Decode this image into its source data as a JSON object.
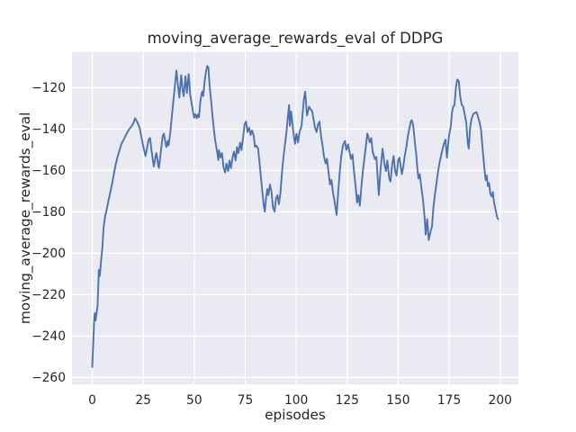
{
  "chart_data": {
    "type": "line",
    "title": "moving_average_rewards_eval of DDPG",
    "xlabel": "episodes",
    "ylabel": "moving_average_rewards_eval",
    "x_ticks": [
      0,
      25,
      50,
      75,
      100,
      125,
      150,
      175,
      200
    ],
    "y_ticks": [
      -120,
      -140,
      -160,
      -180,
      -200,
      -220,
      -240,
      -260
    ],
    "xlim": [
      -9.95,
      208.95
    ],
    "ylim": [
      -263.4,
      -102.7
    ],
    "grid": true,
    "legend": null,
    "colors": {
      "line": "#4c72b0",
      "plot_bg": "#eaeaf2",
      "grid": "#ffffff",
      "text": "#262626",
      "fig_bg": "#ffffff"
    },
    "series": [
      {
        "name": "moving_average_rewards_eval",
        "points": [
          [
            0,
            -255
          ],
          [
            1,
            -230.5
          ],
          [
            1.3,
            -229
          ],
          [
            1.6,
            -232.5
          ],
          [
            2.6,
            -225.5
          ],
          [
            3.2,
            -208
          ],
          [
            3.7,
            -211
          ],
          [
            4.3,
            -203.8
          ],
          [
            5,
            -196.5
          ],
          [
            5.5,
            -188
          ],
          [
            6.3,
            -182
          ],
          [
            6.7,
            -180.6
          ],
          [
            7.3,
            -177.7
          ],
          [
            8.2,
            -173.4
          ],
          [
            8.7,
            -171.2
          ],
          [
            9.9,
            -165.4
          ],
          [
            10.7,
            -161
          ],
          [
            11.4,
            -157.4
          ],
          [
            12.1,
            -154.5
          ],
          [
            12.9,
            -151.6
          ],
          [
            13.6,
            -149.4
          ],
          [
            14.3,
            -147.2
          ],
          [
            15.1,
            -145.7
          ],
          [
            15.8,
            -144.3
          ],
          [
            16.5,
            -142.9
          ],
          [
            17.3,
            -141.4
          ],
          [
            18.4,
            -139.7
          ],
          [
            19.5,
            -138.3
          ],
          [
            20.2,
            -137.1
          ],
          [
            21,
            -134.8
          ],
          [
            22,
            -136.5
          ],
          [
            23.2,
            -139.3
          ],
          [
            23.9,
            -142.9
          ],
          [
            24.6,
            -146.5
          ],
          [
            25.4,
            -150.1
          ],
          [
            26.1,
            -153
          ],
          [
            26.8,
            -149.4
          ],
          [
            27.6,
            -145.1
          ],
          [
            28.3,
            -144.3
          ],
          [
            29,
            -150.1
          ],
          [
            29.8,
            -155.9
          ],
          [
            30.2,
            -158.1
          ],
          [
            31,
            -153
          ],
          [
            31.5,
            -151.6
          ],
          [
            32.3,
            -157.4
          ],
          [
            32.7,
            -158.8
          ],
          [
            33.4,
            -153
          ],
          [
            34.5,
            -143.4
          ],
          [
            35.1,
            -142.2
          ],
          [
            36,
            -147.3
          ],
          [
            36.3,
            -148.7
          ],
          [
            37,
            -145.8
          ],
          [
            37.4,
            -148
          ],
          [
            38.2,
            -142.2
          ],
          [
            38.9,
            -135
          ],
          [
            39.5,
            -129.1
          ],
          [
            40.1,
            -123.3
          ],
          [
            40.7,
            -116.8
          ],
          [
            41.3,
            -111.7
          ],
          [
            42,
            -119
          ],
          [
            42.7,
            -124.8
          ],
          [
            43.6,
            -113.9
          ],
          [
            44.3,
            -121.2
          ],
          [
            44.8,
            -124.1
          ],
          [
            45.7,
            -114.5
          ],
          [
            46.4,
            -122.6
          ],
          [
            47.3,
            -113.5
          ],
          [
            48,
            -123.3
          ],
          [
            48.6,
            -127
          ],
          [
            49.3,
            -131.3
          ],
          [
            50,
            -134.5
          ],
          [
            50.5,
            -132.8
          ],
          [
            51.2,
            -134.8
          ],
          [
            51.8,
            -132.9
          ],
          [
            52.3,
            -134.3
          ],
          [
            52.9,
            -127.7
          ],
          [
            53.5,
            -123.3
          ],
          [
            53.9,
            -121.9
          ],
          [
            54.4,
            -124.1
          ],
          [
            55.1,
            -116.8
          ],
          [
            55.7,
            -112.4
          ],
          [
            56.4,
            -109.5
          ],
          [
            56.9,
            -110.3
          ],
          [
            57.5,
            -118.3
          ],
          [
            57.9,
            -122.6
          ],
          [
            58.4,
            -127.7
          ],
          [
            59,
            -134.2
          ],
          [
            59.6,
            -140
          ],
          [
            60.2,
            -145.1
          ],
          [
            60.7,
            -148
          ],
          [
            61.4,
            -152.3
          ],
          [
            61.8,
            -155
          ],
          [
            62.1,
            -150.2
          ],
          [
            62.9,
            -153.8
          ],
          [
            63.6,
            -151.6
          ],
          [
            64.3,
            -158.1
          ],
          [
            65.1,
            -161
          ],
          [
            65.8,
            -156.7
          ],
          [
            66.6,
            -160.3
          ],
          [
            67.3,
            -155.2
          ],
          [
            68,
            -158.9
          ],
          [
            68.8,
            -153.8
          ],
          [
            69.5,
            -150.9
          ],
          [
            70.3,
            -155.2
          ],
          [
            71,
            -148.7
          ],
          [
            71.7,
            -151.6
          ],
          [
            72.5,
            -146.5
          ],
          [
            73.2,
            -150.2
          ],
          [
            74.7,
            -137.8
          ],
          [
            75.4,
            -136.4
          ],
          [
            76.1,
            -141.5
          ],
          [
            76.9,
            -139.3
          ],
          [
            77.6,
            -142.9
          ],
          [
            78.3,
            -140.7
          ],
          [
            79.1,
            -142.9
          ],
          [
            79.8,
            -148.7
          ],
          [
            80.5,
            -148
          ],
          [
            81.3,
            -149.4
          ],
          [
            82,
            -156
          ],
          [
            82.7,
            -163.2
          ],
          [
            83.5,
            -171.2
          ],
          [
            84.2,
            -177.7
          ],
          [
            84.6,
            -179.9
          ],
          [
            85.2,
            -173.4
          ],
          [
            85.8,
            -169
          ],
          [
            86.4,
            -171.9
          ],
          [
            87.1,
            -166.8
          ],
          [
            87.9,
            -170.4
          ],
          [
            88.6,
            -177.7
          ],
          [
            89.4,
            -179.9
          ],
          [
            90.1,
            -173.4
          ],
          [
            90.8,
            -171.9
          ],
          [
            91.5,
            -176.3
          ],
          [
            92.3,
            -170.4
          ],
          [
            93,
            -161
          ],
          [
            93.8,
            -153
          ],
          [
            94.5,
            -147.2
          ],
          [
            95.2,
            -141.5
          ],
          [
            96,
            -133
          ],
          [
            96.5,
            -128.4
          ],
          [
            96.9,
            -138.5
          ],
          [
            97.5,
            -131.5
          ],
          [
            98.5,
            -140.7
          ],
          [
            99.4,
            -147.2
          ],
          [
            100.1,
            -142.3
          ],
          [
            100.9,
            -146.5
          ],
          [
            101.6,
            -141.5
          ],
          [
            102.6,
            -138.6
          ],
          [
            103.8,
            -125.5
          ],
          [
            104.4,
            -121.9
          ],
          [
            105.3,
            -133.5
          ],
          [
            106.3,
            -129.2
          ],
          [
            107,
            -130.3
          ],
          [
            107.8,
            -131.4
          ],
          [
            109.2,
            -139.3
          ],
          [
            110,
            -141.5
          ],
          [
            110.7,
            -137.8
          ],
          [
            111.4,
            -136.4
          ],
          [
            112.2,
            -143.7
          ],
          [
            112.9,
            -148
          ],
          [
            113.6,
            -153
          ],
          [
            114.4,
            -156.6
          ],
          [
            115.1,
            -154.4
          ],
          [
            115.8,
            -160.3
          ],
          [
            116.6,
            -166.8
          ],
          [
            117.3,
            -164.6
          ],
          [
            118,
            -170.4
          ],
          [
            118.8,
            -174.8
          ],
          [
            119.8,
            -181.5
          ],
          [
            120.7,
            -169
          ],
          [
            121.4,
            -160.3
          ],
          [
            122.1,
            -153
          ],
          [
            122.9,
            -148
          ],
          [
            123.9,
            -145.8
          ],
          [
            124.6,
            -150.1
          ],
          [
            125.4,
            -147.4
          ],
          [
            126.8,
            -154.4
          ],
          [
            127.6,
            -152.3
          ],
          [
            128.3,
            -160.3
          ],
          [
            129,
            -166.2
          ],
          [
            129.8,
            -175.5
          ],
          [
            130.5,
            -171.9
          ],
          [
            131.2,
            -177
          ],
          [
            132,
            -167.6
          ],
          [
            132.7,
            -160.3
          ],
          [
            133.4,
            -154.5
          ],
          [
            134.2,
            -148
          ],
          [
            134.9,
            -142.2
          ],
          [
            136.1,
            -146.5
          ],
          [
            136.8,
            -144.3
          ],
          [
            137.5,
            -151
          ],
          [
            138.6,
            -154.5
          ],
          [
            139.3,
            -153.5
          ],
          [
            140.1,
            -166
          ],
          [
            140.5,
            -171.9
          ],
          [
            141.3,
            -160.3
          ],
          [
            142.3,
            -149.5
          ],
          [
            143.3,
            -156.7
          ],
          [
            144,
            -160.3
          ],
          [
            144.7,
            -155.2
          ],
          [
            145.6,
            -163.9
          ],
          [
            146.2,
            -165.4
          ],
          [
            147.1,
            -156.7
          ],
          [
            147.8,
            -153
          ],
          [
            148.5,
            -160.3
          ],
          [
            149.2,
            -162.5
          ],
          [
            150,
            -155.2
          ],
          [
            150.6,
            -153.8
          ],
          [
            151.8,
            -161.8
          ],
          [
            152.5,
            -158.1
          ],
          [
            153.2,
            -153
          ],
          [
            154,
            -148.7
          ],
          [
            154.7,
            -143.6
          ],
          [
            155.4,
            -140
          ],
          [
            156.2,
            -136.4
          ],
          [
            156.6,
            -135.7
          ],
          [
            157.3,
            -137.8
          ],
          [
            158.4,
            -148.7
          ],
          [
            158.8,
            -151.6
          ],
          [
            159.4,
            -158.9
          ],
          [
            159.9,
            -163.9
          ],
          [
            160.6,
            -161.8
          ],
          [
            161.3,
            -167.6
          ],
          [
            162.1,
            -173.4
          ],
          [
            162.8,
            -180.7
          ],
          [
            163.5,
            -191
          ],
          [
            164.2,
            -183.5
          ],
          [
            165,
            -193.6
          ],
          [
            166,
            -189
          ],
          [
            166.6,
            -187.1
          ],
          [
            167.3,
            -177.7
          ],
          [
            168,
            -171.9
          ],
          [
            168.8,
            -166.1
          ],
          [
            169.5,
            -161
          ],
          [
            170.2,
            -156.7
          ],
          [
            171,
            -153
          ],
          [
            171.7,
            -150.1
          ],
          [
            172.4,
            -147.2
          ],
          [
            173.2,
            -145.1
          ],
          [
            173.9,
            -153.8
          ],
          [
            174.9,
            -143.6
          ],
          [
            175.8,
            -138.6
          ],
          [
            176.4,
            -132
          ],
          [
            177,
            -129.1
          ],
          [
            177.6,
            -128.4
          ],
          [
            178.3,
            -119.7
          ],
          [
            179,
            -116.1
          ],
          [
            179.7,
            -116.8
          ],
          [
            180.5,
            -124.8
          ],
          [
            181.2,
            -128.4
          ],
          [
            181.9,
            -129.1
          ],
          [
            183.4,
            -137.1
          ],
          [
            184.1,
            -146.5
          ],
          [
            184.6,
            -149.4
          ],
          [
            185.3,
            -139.3
          ],
          [
            186,
            -135
          ],
          [
            186.8,
            -132.8
          ],
          [
            187.8,
            -132
          ],
          [
            188.5,
            -132
          ],
          [
            190,
            -137.1
          ],
          [
            190.7,
            -140.7
          ],
          [
            191.5,
            -150.9
          ],
          [
            192.2,
            -158.1
          ],
          [
            192.9,
            -164.6
          ],
          [
            193.4,
            -162.5
          ],
          [
            194,
            -167.6
          ],
          [
            194.6,
            -166.1
          ],
          [
            195.2,
            -171.2
          ],
          [
            195.9,
            -172.6
          ],
          [
            196.4,
            -170.4
          ],
          [
            196.9,
            -174.8
          ],
          [
            197.8,
            -179.2
          ],
          [
            198.6,
            -182.8
          ],
          [
            199,
            -183.5
          ]
        ]
      }
    ]
  }
}
